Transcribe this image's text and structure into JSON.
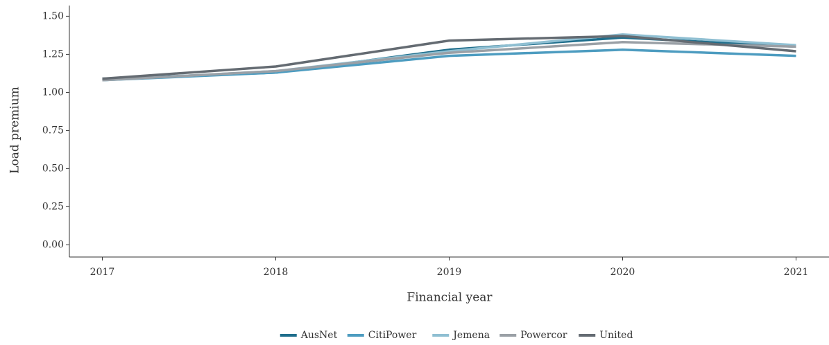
{
  "chart_data": {
    "type": "line",
    "x_label": "Financial year",
    "y_label": "Load premium",
    "x": [
      2017,
      2018,
      2019,
      2020,
      2021
    ],
    "xlim": [
      2016.81,
      2021.19
    ],
    "xticks": [
      2017,
      2018,
      2019,
      2020,
      2021
    ],
    "ylim": [
      -0.08,
      1.57
    ],
    "yticks": [
      {
        "value": 0,
        "label": "0.00"
      },
      {
        "value": 0.25,
        "label": "0.25"
      },
      {
        "value": 0.5,
        "label": "0.50"
      },
      {
        "value": 0.75,
        "label": "0.75"
      },
      {
        "value": 1,
        "label": "1.00"
      },
      {
        "value": 1.25,
        "label": "1.25"
      },
      {
        "value": 1.5,
        "label": "1.50"
      }
    ],
    "legend": "bottom",
    "series": [
      {
        "name": "AusNet",
        "color": "#1f6e8c",
        "values": [
          1.09,
          1.13,
          1.28,
          1.36,
          1.3
        ]
      },
      {
        "name": "CitiPower",
        "color": "#4d9cc0",
        "values": [
          1.08,
          1.13,
          1.24,
          1.28,
          1.24
        ]
      },
      {
        "name": "Jemena",
        "color": "#8fbfd2",
        "values": [
          1.08,
          1.14,
          1.27,
          1.38,
          1.31
        ]
      },
      {
        "name": "Powercor",
        "color": "#9aa0a6",
        "values": [
          1.08,
          1.14,
          1.26,
          1.33,
          1.3
        ]
      },
      {
        "name": "United",
        "color": "#646b72",
        "values": [
          1.09,
          1.17,
          1.34,
          1.37,
          1.27
        ]
      }
    ]
  }
}
